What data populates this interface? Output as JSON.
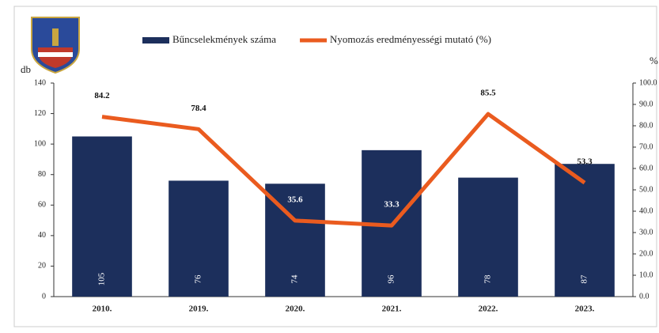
{
  "chart_data": {
    "type": "combo",
    "categories": [
      "2010.",
      "2019.",
      "2020.",
      "2021.",
      "2022.",
      "2023."
    ],
    "series": [
      {
        "name": "Bűncselekmények száma",
        "type": "bar",
        "color": "#1c2f5c",
        "values": [
          105,
          76,
          74,
          96,
          78,
          87
        ]
      },
      {
        "name": "Nyomozás eredményességi mutató (%)",
        "type": "line",
        "axis": "y2",
        "color": "#ea5b1f",
        "values": [
          84.2,
          78.4,
          35.6,
          33.3,
          85.5,
          53.3
        ]
      }
    ],
    "y_label": "db",
    "y2_label": "%",
    "ylim": [
      0,
      140
    ],
    "yticks": [
      0,
      20,
      40,
      60,
      80,
      100,
      120,
      140
    ],
    "y2lim": [
      0,
      100
    ],
    "y2ticks": [
      {
        "value": 0,
        "label": "0.0"
      },
      {
        "value": 10,
        "label": "10.0"
      },
      {
        "value": 20,
        "label": "20.0"
      },
      {
        "value": 30,
        "label": "30.0"
      },
      {
        "value": 40,
        "label": "40.0"
      },
      {
        "value": 50,
        "label": "50.0"
      },
      {
        "value": 60,
        "label": "60.0"
      },
      {
        "value": 70,
        "label": "70.0"
      },
      {
        "value": 80,
        "label": "80.0"
      },
      {
        "value": 90,
        "label": "90.0"
      },
      {
        "value": 100,
        "label": "100.0"
      }
    ],
    "legend": "top"
  }
}
